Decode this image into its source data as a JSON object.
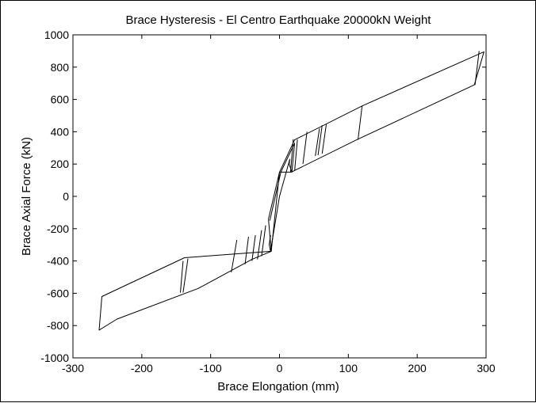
{
  "chart_data": {
    "type": "line",
    "title": "Brace Hysteresis - El Centro Earthquake 20000kN Weight",
    "xlabel": "Brace Elongation (mm)",
    "ylabel": "Brace Axial Force (kN)",
    "xlim": [
      -300,
      300
    ],
    "ylim": [
      -1000,
      1000
    ],
    "x_ticks": [
      -300,
      -200,
      -100,
      0,
      100,
      200,
      300
    ],
    "y_ticks": [
      -1000,
      -800,
      -600,
      -400,
      -200,
      0,
      200,
      400,
      600,
      800,
      1000
    ],
    "grid": false,
    "legend": "none",
    "line_color": "#000000",
    "series": [
      {
        "points": [
          [
            -16,
            -140
          ],
          [
            0,
            150
          ],
          [
            22,
            350
          ],
          [
            120,
            560
          ],
          [
            297,
            895
          ],
          [
            283,
            690
          ],
          [
            112,
            350
          ],
          [
            17,
            150
          ],
          [
            0,
            150
          ],
          [
            -12,
            -340
          ],
          [
            -138,
            -380
          ],
          [
            -258,
            -620
          ],
          [
            -262,
            -828
          ],
          [
            -236,
            -760
          ],
          [
            -118,
            -570
          ],
          [
            -40,
            -390
          ],
          [
            -12,
            -340
          ]
        ]
      },
      {
        "points": [
          [
            -13,
            -240
          ],
          [
            -15,
            -300
          ],
          [
            -13,
            -340
          ],
          [
            0,
            0
          ],
          [
            15,
            230
          ],
          [
            14,
            200
          ],
          [
            18,
            150
          ],
          [
            22,
            330
          ],
          [
            2,
            150
          ],
          [
            -14,
            -150
          ]
        ]
      }
    ],
    "unloading_branches": [
      [
        [
          -12,
          -340
        ],
        [
          -16,
          -140
        ]
      ],
      [
        [
          -144,
          -596
        ],
        [
          -140,
          -400
        ]
      ],
      [
        [
          -140,
          -596
        ],
        [
          -133,
          -386
        ]
      ],
      [
        [
          -70,
          -470
        ],
        [
          -62,
          -270
        ]
      ],
      [
        [
          -50,
          -420
        ],
        [
          -45,
          -250
        ]
      ],
      [
        [
          -40,
          -400
        ],
        [
          -35,
          -240
        ]
      ],
      [
        [
          -32,
          -390
        ],
        [
          -26,
          -210
        ]
      ],
      [
        [
          -26,
          -370
        ],
        [
          -20,
          -180
        ]
      ],
      [
        [
          16,
          150
        ],
        [
          20,
          354
        ]
      ],
      [
        [
          22,
          160
        ],
        [
          26,
          352
        ]
      ],
      [
        [
          34,
          200
        ],
        [
          40,
          400
        ]
      ],
      [
        [
          52,
          250
        ],
        [
          58,
          420
        ]
      ],
      [
        [
          56,
          255
        ],
        [
          62,
          440
        ]
      ],
      [
        [
          62,
          265
        ],
        [
          68,
          445
        ]
      ],
      [
        [
          114,
          350
        ],
        [
          120,
          560
        ]
      ],
      [
        [
          284,
          690
        ],
        [
          290,
          900
        ]
      ]
    ]
  }
}
